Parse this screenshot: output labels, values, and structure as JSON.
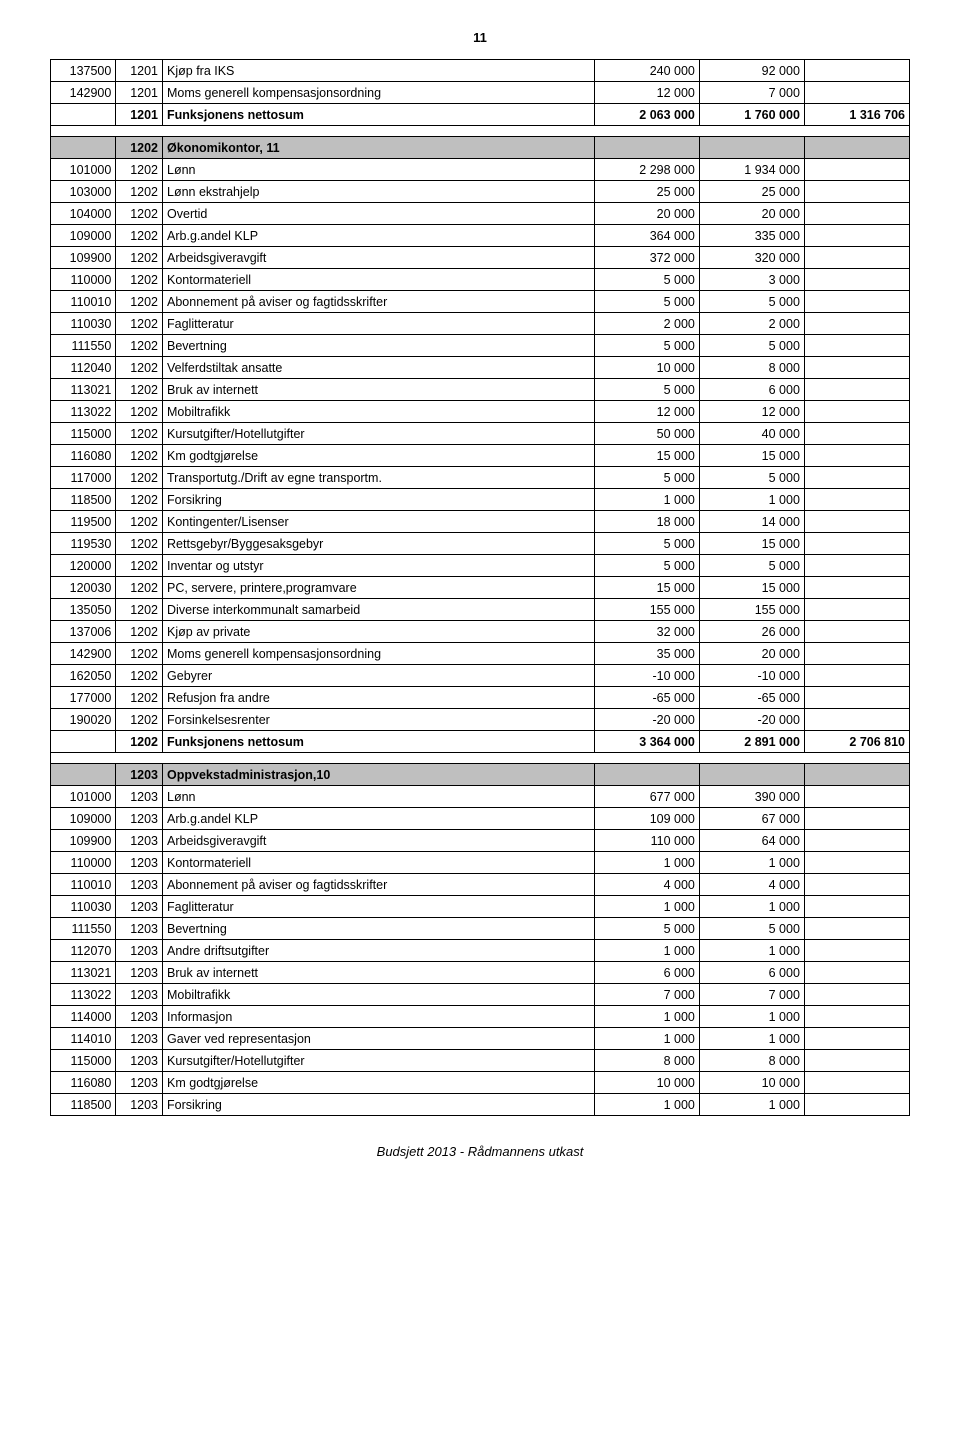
{
  "page_number": "11",
  "footer": "Budsjett 2013 - Rådmannens utkast",
  "colors": {
    "section_bg": "#bfbfbf",
    "border": "#000000",
    "text": "#000000",
    "background": "#ffffff"
  },
  "rows": [
    {
      "type": "data",
      "c1": "137500",
      "c2": "1201",
      "desc": "Kjøp fra IKS",
      "v1": "240 000",
      "v2": "92 000",
      "v3": ""
    },
    {
      "type": "data",
      "c1": "142900",
      "c2": "1201",
      "desc": "Moms generell kompensasjonsordning",
      "v1": "12 000",
      "v2": "7 000",
      "v3": ""
    },
    {
      "type": "total",
      "c1": "",
      "c2": "1201",
      "desc": "Funksjonens nettosum",
      "v1": "2 063 000",
      "v2": "1 760 000",
      "v3": "1 316 706"
    },
    {
      "type": "spacer"
    },
    {
      "type": "section",
      "c1": "",
      "c2": "1202",
      "desc": "Økonomikontor, 11",
      "v1": "",
      "v2": "",
      "v3": ""
    },
    {
      "type": "data",
      "c1": "101000",
      "c2": "1202",
      "desc": "Lønn",
      "v1": "2 298 000",
      "v2": "1 934 000",
      "v3": ""
    },
    {
      "type": "data",
      "c1": "103000",
      "c2": "1202",
      "desc": "Lønn ekstrahjelp",
      "v1": "25 000",
      "v2": "25 000",
      "v3": ""
    },
    {
      "type": "data",
      "c1": "104000",
      "c2": "1202",
      "desc": "Overtid",
      "v1": "20 000",
      "v2": "20 000",
      "v3": ""
    },
    {
      "type": "data",
      "c1": "109000",
      "c2": "1202",
      "desc": "Arb.g.andel KLP",
      "v1": "364 000",
      "v2": "335 000",
      "v3": ""
    },
    {
      "type": "data",
      "c1": "109900",
      "c2": "1202",
      "desc": "Arbeidsgiveravgift",
      "v1": "372 000",
      "v2": "320 000",
      "v3": ""
    },
    {
      "type": "data",
      "c1": "110000",
      "c2": "1202",
      "desc": "Kontormateriell",
      "v1": "5 000",
      "v2": "3 000",
      "v3": ""
    },
    {
      "type": "data",
      "c1": "110010",
      "c2": "1202",
      "desc": "Abonnement på aviser og fagtidsskrifter",
      "v1": "5 000",
      "v2": "5 000",
      "v3": ""
    },
    {
      "type": "data",
      "c1": "110030",
      "c2": "1202",
      "desc": "Faglitteratur",
      "v1": "2 000",
      "v2": "2 000",
      "v3": ""
    },
    {
      "type": "data",
      "c1": "111550",
      "c2": "1202",
      "desc": "Bevertning",
      "v1": "5 000",
      "v2": "5 000",
      "v3": ""
    },
    {
      "type": "data",
      "c1": "112040",
      "c2": "1202",
      "desc": "Velferdstiltak ansatte",
      "v1": "10 000",
      "v2": "8 000",
      "v3": ""
    },
    {
      "type": "data",
      "c1": "113021",
      "c2": "1202",
      "desc": "Bruk av internett",
      "v1": "5 000",
      "v2": "6 000",
      "v3": ""
    },
    {
      "type": "data",
      "c1": "113022",
      "c2": "1202",
      "desc": "Mobiltrafikk",
      "v1": "12 000",
      "v2": "12 000",
      "v3": ""
    },
    {
      "type": "data",
      "c1": "115000",
      "c2": "1202",
      "desc": "Kursutgifter/Hotellutgifter",
      "v1": "50 000",
      "v2": "40 000",
      "v3": ""
    },
    {
      "type": "data",
      "c1": "116080",
      "c2": "1202",
      "desc": "Km godtgjørelse",
      "v1": "15 000",
      "v2": "15 000",
      "v3": ""
    },
    {
      "type": "data",
      "c1": "117000",
      "c2": "1202",
      "desc": "Transportutg./Drift av egne transportm.",
      "v1": "5 000",
      "v2": "5 000",
      "v3": ""
    },
    {
      "type": "data",
      "c1": "118500",
      "c2": "1202",
      "desc": "Forsikring",
      "v1": "1 000",
      "v2": "1 000",
      "v3": ""
    },
    {
      "type": "data",
      "c1": "119500",
      "c2": "1202",
      "desc": "Kontingenter/Lisenser",
      "v1": "18 000",
      "v2": "14 000",
      "v3": ""
    },
    {
      "type": "data",
      "c1": "119530",
      "c2": "1202",
      "desc": "Rettsgebyr/Byggesaksgebyr",
      "v1": "5 000",
      "v2": "15 000",
      "v3": ""
    },
    {
      "type": "data",
      "c1": "120000",
      "c2": "1202",
      "desc": "Inventar og utstyr",
      "v1": "5 000",
      "v2": "5 000",
      "v3": ""
    },
    {
      "type": "data",
      "c1": "120030",
      "c2": "1202",
      "desc": "PC, servere, printere,programvare",
      "v1": "15 000",
      "v2": "15 000",
      "v3": ""
    },
    {
      "type": "data",
      "c1": "135050",
      "c2": "1202",
      "desc": "Diverse interkommunalt samarbeid",
      "v1": "155 000",
      "v2": "155 000",
      "v3": ""
    },
    {
      "type": "data",
      "c1": "137006",
      "c2": "1202",
      "desc": "Kjøp av private",
      "v1": "32 000",
      "v2": "26 000",
      "v3": ""
    },
    {
      "type": "data",
      "c1": "142900",
      "c2": "1202",
      "desc": "Moms generell kompensasjonsordning",
      "v1": "35 000",
      "v2": "20 000",
      "v3": ""
    },
    {
      "type": "data",
      "c1": "162050",
      "c2": "1202",
      "desc": "Gebyrer",
      "v1": "-10 000",
      "v2": "-10 000",
      "v3": ""
    },
    {
      "type": "data",
      "c1": "177000",
      "c2": "1202",
      "desc": "Refusjon fra andre",
      "v1": "-65 000",
      "v2": "-65 000",
      "v3": ""
    },
    {
      "type": "data",
      "c1": "190020",
      "c2": "1202",
      "desc": "Forsinkelsesrenter",
      "v1": "-20 000",
      "v2": "-20 000",
      "v3": ""
    },
    {
      "type": "total",
      "c1": "",
      "c2": "1202",
      "desc": "Funksjonens nettosum",
      "v1": "3 364 000",
      "v2": "2 891 000",
      "v3": "2 706 810"
    },
    {
      "type": "spacer"
    },
    {
      "type": "section",
      "c1": "",
      "c2": "1203",
      "desc": "Oppvekstadministrasjon,10",
      "v1": "",
      "v2": "",
      "v3": ""
    },
    {
      "type": "data",
      "c1": "101000",
      "c2": "1203",
      "desc": "Lønn",
      "v1": "677 000",
      "v2": "390 000",
      "v3": ""
    },
    {
      "type": "data",
      "c1": "109000",
      "c2": "1203",
      "desc": "Arb.g.andel KLP",
      "v1": "109 000",
      "v2": "67 000",
      "v3": ""
    },
    {
      "type": "data",
      "c1": "109900",
      "c2": "1203",
      "desc": "Arbeidsgiveravgift",
      "v1": "110 000",
      "v2": "64 000",
      "v3": ""
    },
    {
      "type": "data",
      "c1": "110000",
      "c2": "1203",
      "desc": "Kontormateriell",
      "v1": "1 000",
      "v2": "1 000",
      "v3": ""
    },
    {
      "type": "data",
      "c1": "110010",
      "c2": "1203",
      "desc": "Abonnement på aviser og fagtidsskrifter",
      "v1": "4 000",
      "v2": "4 000",
      "v3": ""
    },
    {
      "type": "data",
      "c1": "110030",
      "c2": "1203",
      "desc": "Faglitteratur",
      "v1": "1 000",
      "v2": "1 000",
      "v3": ""
    },
    {
      "type": "data",
      "c1": "111550",
      "c2": "1203",
      "desc": "Bevertning",
      "v1": "5 000",
      "v2": "5 000",
      "v3": ""
    },
    {
      "type": "data",
      "c1": "112070",
      "c2": "1203",
      "desc": "Andre driftsutgifter",
      "v1": "1 000",
      "v2": "1 000",
      "v3": ""
    },
    {
      "type": "data",
      "c1": "113021",
      "c2": "1203",
      "desc": "Bruk av internett",
      "v1": "6 000",
      "v2": "6 000",
      "v3": ""
    },
    {
      "type": "data",
      "c1": "113022",
      "c2": "1203",
      "desc": "Mobiltrafikk",
      "v1": "7 000",
      "v2": "7 000",
      "v3": ""
    },
    {
      "type": "data",
      "c1": "114000",
      "c2": "1203",
      "desc": "Informasjon",
      "v1": "1 000",
      "v2": "1 000",
      "v3": ""
    },
    {
      "type": "data",
      "c1": "114010",
      "c2": "1203",
      "desc": "Gaver ved representasjon",
      "v1": "1 000",
      "v2": "1 000",
      "v3": ""
    },
    {
      "type": "data",
      "c1": "115000",
      "c2": "1203",
      "desc": "Kursutgifter/Hotellutgifter",
      "v1": "8 000",
      "v2": "8 000",
      "v3": ""
    },
    {
      "type": "data",
      "c1": "116080",
      "c2": "1203",
      "desc": "Km godtgjørelse",
      "v1": "10 000",
      "v2": "10 000",
      "v3": ""
    },
    {
      "type": "data",
      "c1": "118500",
      "c2": "1203",
      "desc": "Forsikring",
      "v1": "1 000",
      "v2": "1 000",
      "v3": ""
    }
  ]
}
